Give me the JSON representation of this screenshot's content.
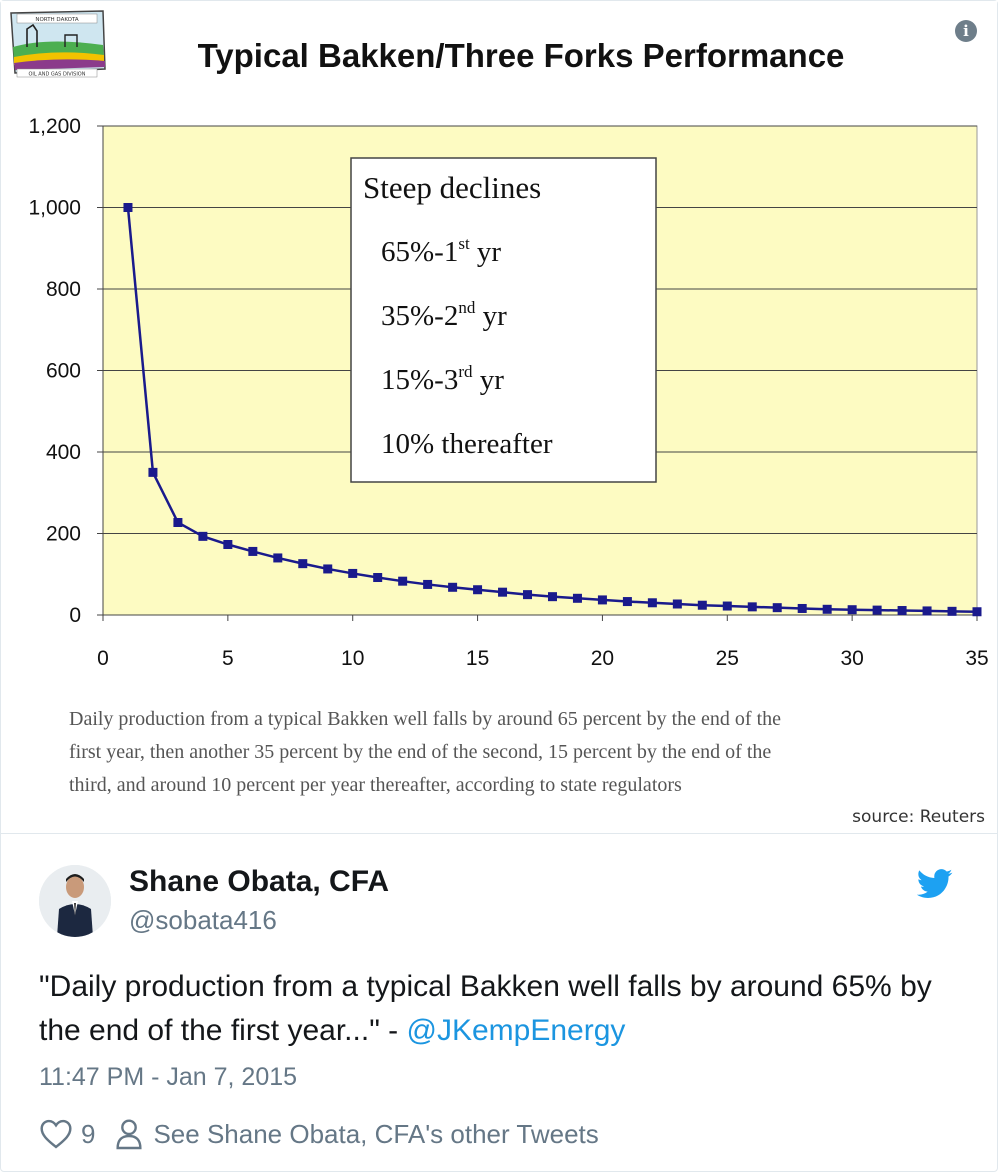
{
  "media": {
    "info_icon_label": "i",
    "caption_lines": [
      "Daily production from a typical Bakken well falls by around 65 percent by the end of the",
      "first year, then another 35 percent by the end of the second, 15 percent by the end of the",
      "third, and around 10 percent per year thereafter, according to state regulators"
    ],
    "source": "source: Reuters",
    "logo_text_top": "NORTH DAKOTA",
    "logo_text_bottom": "OIL AND GAS DIVISION"
  },
  "chart_data": {
    "type": "line",
    "title": "Typical Bakken/Three Forks Performance",
    "xlabel": "",
    "ylabel": "",
    "xlim": [
      0,
      35
    ],
    "ylim": [
      0,
      1200
    ],
    "x_ticks": [
      "0",
      "5",
      "10",
      "15",
      "20",
      "25",
      "30",
      "35"
    ],
    "y_ticks": [
      "0",
      "200",
      "400",
      "600",
      "800",
      "1,000",
      "1,200"
    ],
    "grid": true,
    "background_color": "#fdfbc2",
    "line_color": "#1a1a8c",
    "x": [
      1,
      2,
      3,
      4,
      5,
      6,
      7,
      8,
      9,
      10,
      11,
      12,
      13,
      14,
      15,
      16,
      17,
      18,
      19,
      20,
      21,
      22,
      23,
      24,
      25,
      26,
      27,
      28,
      29,
      30,
      31,
      32,
      33,
      34,
      35
    ],
    "series": [
      {
        "values": [
          1000,
          350,
          227,
          193,
          173,
          156,
          140,
          126,
          113,
          102,
          92,
          83,
          75,
          68,
          62,
          56,
          50,
          45,
          41,
          37,
          33,
          30,
          27,
          24,
          22,
          20,
          18,
          16,
          14,
          13,
          12,
          11,
          10,
          9,
          8
        ]
      }
    ],
    "annotation": {
      "heading": "Steep declines",
      "lines": [
        {
          "pre": "65%-1",
          "sup": "st",
          "post": " yr"
        },
        {
          "pre": "35%-2",
          "sup": "nd",
          "post": " yr"
        },
        {
          "pre": "15%-3",
          "sup": "rd",
          "post": " yr"
        },
        {
          "pre": "10% thereafter",
          "sup": "",
          "post": ""
        }
      ]
    }
  },
  "tweet": {
    "name": "Shane Obata, CFA",
    "handle": "@sobata416",
    "text_before_mention": "\"Daily production from a typical Bakken well falls by around 65% by the end of the first year...\" - ",
    "mention": "@JKempEnergy",
    "timestamp": "11:47 PM - Jan 7, 2015",
    "like_count": "9",
    "other_tweets_link": "See Shane Obata, CFA's other Tweets",
    "colors": {
      "link": "#1b95e0",
      "secondary_text": "#657786",
      "twitter_brand": "#1da1f2"
    }
  }
}
